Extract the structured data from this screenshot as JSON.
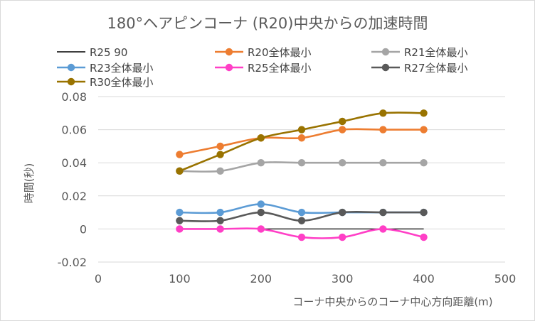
{
  "chart_data": {
    "type": "line",
    "title": "180°ヘアピンコーナ (R20)中央からの加速時間",
    "xlabel": "コーナ中央からのコーナ中心方向距離(m)",
    "ylabel": "時間(秒)",
    "xlim": [
      0,
      500
    ],
    "ylim": [
      -0.02,
      0.08
    ],
    "x_ticks": [
      "0",
      "100",
      "200",
      "300",
      "400",
      "500"
    ],
    "y_ticks": [
      "-0.02",
      "0",
      "0.02",
      "0.04",
      "0.06",
      "0.08"
    ],
    "grid": "horizontal",
    "legend_position": "top",
    "x": [
      100,
      150,
      200,
      250,
      300,
      350,
      400
    ],
    "series": [
      {
        "name": "R25 90",
        "color": "#000000",
        "marker": "none",
        "x": [
          200,
          250,
          300,
          350,
          400
        ],
        "values": [
          0,
          0,
          0,
          0,
          0
        ]
      },
      {
        "name": "R20全体最小",
        "color": "#ED7D31",
        "marker": "circle",
        "values": [
          0.045,
          0.05,
          0.055,
          0.055,
          0.06,
          0.06,
          0.06
        ]
      },
      {
        "name": "R21全体最小",
        "color": "#A5A5A5",
        "marker": "circle",
        "values": [
          0.035,
          0.035,
          0.04,
          0.04,
          0.04,
          0.04,
          0.04
        ]
      },
      {
        "name": "R23全体最小",
        "color": "#5B9BD5",
        "marker": "circle",
        "values": [
          0.01,
          0.01,
          0.015,
          0.01,
          0.01,
          0.01,
          0.01
        ]
      },
      {
        "name": "R25全体最小",
        "color": "#FF3FC6",
        "marker": "circle",
        "values": [
          0,
          0,
          0,
          -0.005,
          -0.005,
          0,
          -0.005
        ]
      },
      {
        "name": "R27全体最小",
        "color": "#595959",
        "marker": "circle",
        "values": [
          0.005,
          0.005,
          0.01,
          0.005,
          0.01,
          0.01,
          0.01
        ]
      },
      {
        "name": "R30全体最小",
        "color": "#997300",
        "marker": "circle",
        "values": [
          0.035,
          0.045,
          0.055,
          0.06,
          0.065,
          0.07,
          0.07
        ]
      }
    ]
  }
}
